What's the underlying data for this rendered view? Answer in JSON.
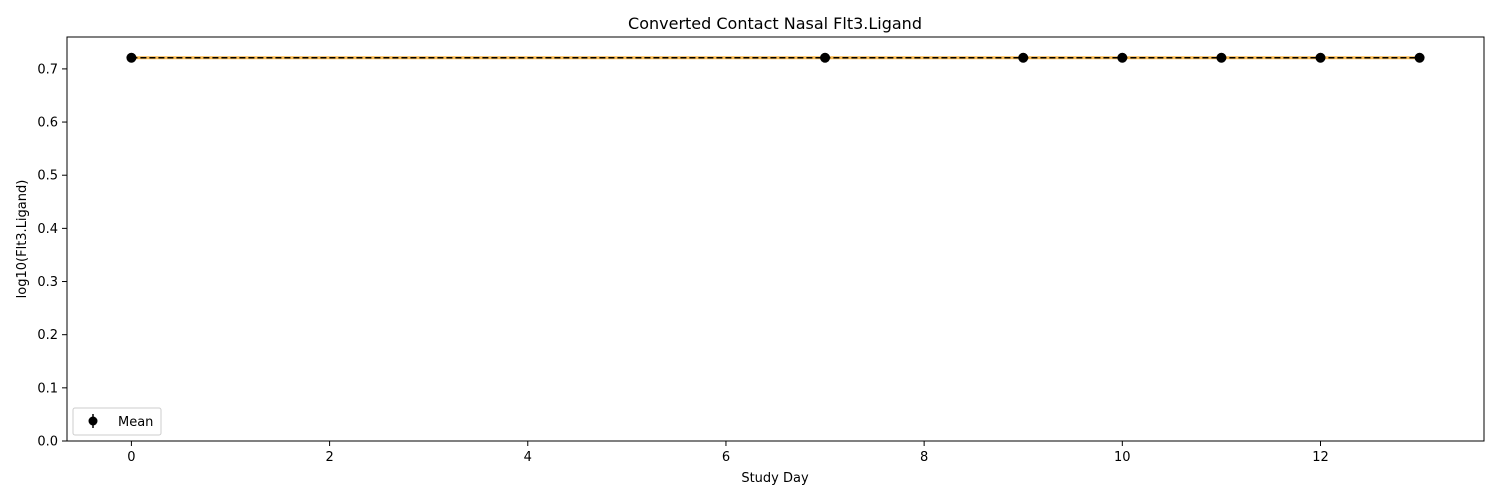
{
  "chart_data": {
    "type": "line",
    "title": "Converted Contact Nasal Flt3.Ligand",
    "xlabel": "Study Day",
    "ylabel": "log10(Flt3.Ligand)",
    "xlim": [
      -0.65,
      13.65
    ],
    "ylim": [
      0.0,
      0.76
    ],
    "x_ticks": [
      0,
      2,
      4,
      6,
      8,
      10,
      12
    ],
    "y_ticks": [
      0.0,
      0.1,
      0.2,
      0.3,
      0.4,
      0.5,
      0.6,
      0.7
    ],
    "grid": false,
    "legend_position": "lower-left",
    "series": [
      {
        "name": "Mean",
        "x": [
          0,
          7,
          9,
          10,
          11,
          12,
          13
        ],
        "y": [
          0.721,
          0.721,
          0.721,
          0.721,
          0.721,
          0.721,
          0.721
        ],
        "color": "#000000",
        "linestyle": "dashed",
        "marker": "circle",
        "errorbars": true
      }
    ],
    "underlay_line_color": "#f5a623"
  }
}
